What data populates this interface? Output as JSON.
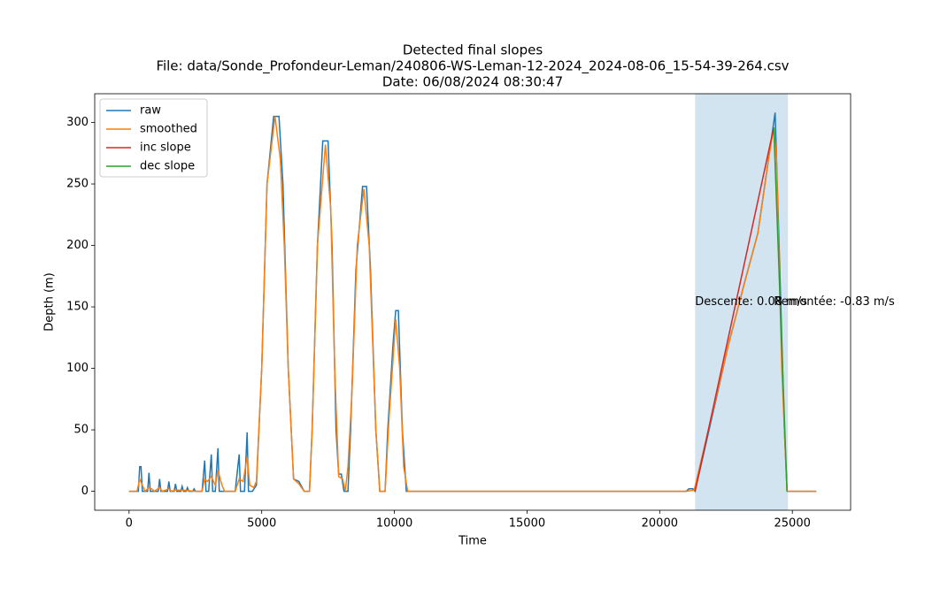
{
  "chart_data": {
    "type": "line",
    "title": [
      "Detected final slopes",
      "File: data/Sonde_Profondeur-Leman/240806-WS-Leman-12-2024_2024-08-06_15-54-39-264.csv",
      "Date: 06/08/2024 08:30:47"
    ],
    "xlabel": "Time",
    "ylabel": "Depth (m)",
    "xlim": [
      -1295,
      27195
    ],
    "ylim": [
      -15.4,
      323.4
    ],
    "xticks": [
      0,
      5000,
      10000,
      15000,
      20000,
      25000
    ],
    "yticks": [
      0,
      50,
      100,
      150,
      200,
      250,
      300
    ],
    "legend": "upper left",
    "span": {
      "x": [
        21333,
        24833
      ],
      "color": "#1f77b4"
    },
    "series": [
      {
        "name": "raw",
        "color": "#1f77b4",
        "x": [
          0,
          350,
          400,
          450,
          500,
          700,
          750,
          800,
          1100,
          1150,
          1200,
          1450,
          1500,
          1550,
          1700,
          1750,
          1800,
          1950,
          2000,
          2050,
          2150,
          2200,
          2250,
          2400,
          2450,
          2500,
          2750,
          2850,
          2900,
          3000,
          3100,
          3150,
          3250,
          3350,
          3400,
          4000,
          4150,
          4200,
          4350,
          4450,
          4500,
          4650,
          4800,
          5000,
          5200,
          5450,
          5650,
          5800,
          6000,
          6200,
          6400,
          6600,
          6800,
          6900,
          7100,
          7300,
          7500,
          7650,
          7800,
          7900,
          8000,
          8100,
          8250,
          8350,
          8550,
          8800,
          8950,
          9100,
          9300,
          9450,
          9650,
          9750,
          9950,
          10050,
          10150,
          10300,
          10450,
          10600,
          21000,
          21100,
          21250,
          21333,
          22600,
          23200,
          23700,
          24100,
          24350,
          24500,
          24700,
          24800,
          25900
        ],
        "values": [
          0,
          0,
          20,
          20,
          0,
          0,
          15,
          0,
          0,
          10,
          0,
          0,
          8,
          0,
          0,
          6,
          0,
          0,
          4,
          0,
          0,
          3,
          0,
          0,
          2,
          0,
          0,
          25,
          0,
          0,
          30,
          0,
          0,
          35,
          0,
          0,
          30,
          0,
          0,
          48,
          0,
          0,
          5,
          100,
          250,
          305,
          305,
          250,
          100,
          10,
          8,
          0,
          0,
          50,
          200,
          285,
          285,
          200,
          50,
          14,
          14,
          0,
          0,
          50,
          180,
          248,
          248,
          180,
          50,
          0,
          0,
          50,
          120,
          147,
          147,
          50,
          0,
          0,
          0,
          2,
          2,
          0,
          120,
          170,
          210,
          270,
          308,
          200,
          50,
          0,
          0
        ]
      },
      {
        "name": "smoothed",
        "color": "#ff7f0e",
        "x": [
          0,
          300,
          400,
          500,
          600,
          750,
          850,
          950,
          1150,
          1250,
          1500,
          1600,
          1750,
          2000,
          2500,
          2750,
          2850,
          2950,
          3100,
          3250,
          3350,
          3500,
          3600,
          4000,
          4150,
          4300,
          4450,
          4550,
          4700,
          4800,
          5000,
          5200,
          5500,
          5700,
          5850,
          6000,
          6200,
          6400,
          6600,
          6800,
          6900,
          7100,
          7400,
          7600,
          7750,
          7900,
          8050,
          8150,
          8250,
          8400,
          8600,
          8850,
          9050,
          9300,
          9450,
          9650,
          9800,
          10050,
          10200,
          10350,
          10500,
          21000,
          21300,
          22600,
          23200,
          23700,
          24100,
          24300,
          24400,
          24600,
          24800,
          25900
        ],
        "values": [
          0,
          0,
          10,
          5,
          0,
          3,
          2,
          0,
          3,
          0,
          2,
          0,
          1,
          1,
          0,
          0,
          10,
          8,
          12,
          5,
          17,
          5,
          0,
          0,
          10,
          8,
          28,
          5,
          3,
          8,
          100,
          250,
          305,
          270,
          200,
          100,
          10,
          6,
          0,
          0,
          50,
          200,
          282,
          230,
          100,
          12,
          10,
          0,
          20,
          80,
          200,
          246,
          200,
          50,
          0,
          0,
          60,
          140,
          100,
          20,
          0,
          0,
          1,
          120,
          170,
          210,
          270,
          296,
          270,
          100,
          0,
          0
        ]
      },
      {
        "name": "inc slope",
        "color": "#d62728",
        "x": [
          21333,
          24300
        ],
        "values": [
          0,
          296
        ]
      },
      {
        "name": "dec slope",
        "color": "#2ca02c",
        "x": [
          24300,
          24800
        ],
        "values": [
          296,
          0
        ]
      }
    ],
    "annotations": [
      {
        "text": "Descente: 0.08 m/s",
        "x": 21333,
        "y": 154
      },
      {
        "text": "Remontée: -0.83 m/s",
        "x": 24300,
        "y": 154
      }
    ]
  }
}
